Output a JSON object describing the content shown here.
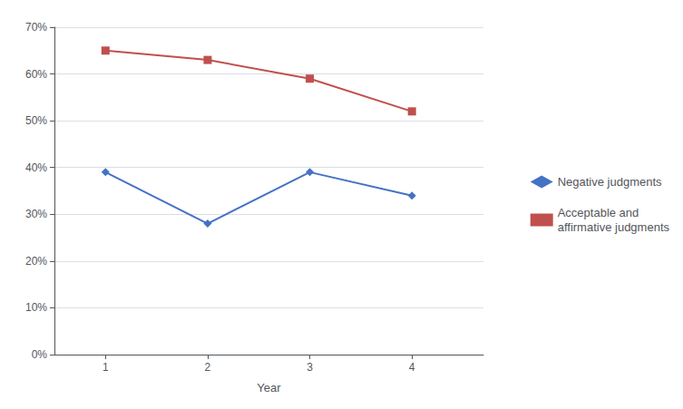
{
  "chart_data": {
    "type": "line",
    "x": [
      1,
      2,
      3,
      4
    ],
    "xlabel": "Year",
    "xlim": [
      0.5,
      4.7
    ],
    "xticks": [
      1,
      2,
      3,
      4
    ],
    "ylim": [
      0,
      0.7
    ],
    "yticks": [
      {
        "value": 0.0,
        "label": "0%"
      },
      {
        "value": 0.1,
        "label": "10%"
      },
      {
        "value": 0.2,
        "label": "20%"
      },
      {
        "value": 0.3,
        "label": "30%"
      },
      {
        "value": 0.4,
        "label": "40%"
      },
      {
        "value": 0.5,
        "label": "50%"
      },
      {
        "value": 0.6,
        "label": "60%"
      },
      {
        "value": 0.7,
        "label": "70%"
      }
    ],
    "grid": true,
    "legend": "right",
    "series": [
      {
        "name": "Negative judgments",
        "color": "#4472C4",
        "marker": "diamond",
        "values": [
          0.39,
          0.28,
          0.39,
          0.34
        ]
      },
      {
        "name": "Acceptable and\naffirmative judgments",
        "color": "#C0504D",
        "marker": "square",
        "values": [
          0.65,
          0.63,
          0.59,
          0.52
        ]
      }
    ]
  }
}
